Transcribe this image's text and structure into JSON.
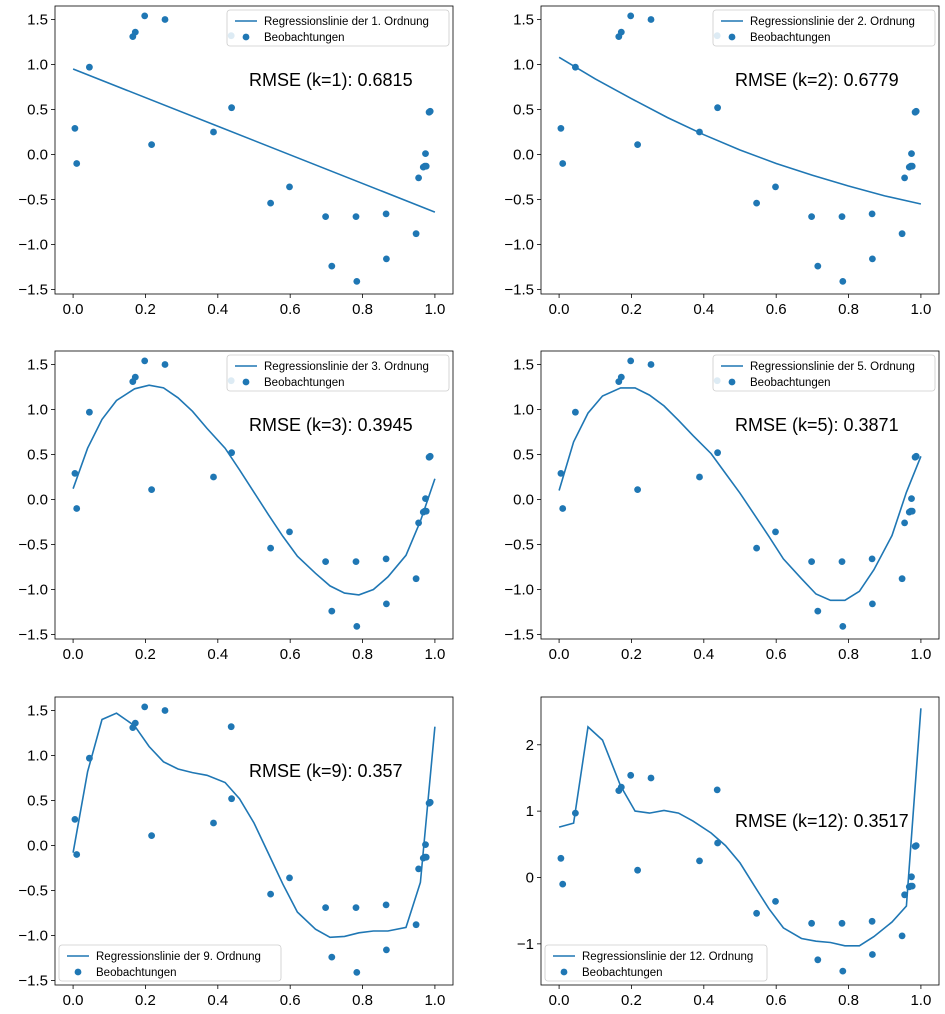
{
  "chart_data": [
    {
      "type": "line",
      "line_label": "Regressionslinie der 1. Ordnung",
      "points_label": "Beobachtungen",
      "rmse_label": "RMSE (k=1): 0.6815",
      "legend_position": "upper right",
      "xlim": [
        -0.05,
        1.05
      ],
      "ylim": [
        -1.55,
        1.65
      ],
      "xticks": [
        "0.0",
        "0.2",
        "0.4",
        "0.6",
        "0.8",
        "1.0"
      ],
      "yticks": [
        "-1.5",
        "-1.0",
        "-0.5",
        "0.0",
        "0.5",
        "1.0",
        "1.5"
      ],
      "ytick_values": [
        -1.5,
        -1.0,
        -0.5,
        0.0,
        0.5,
        1.0,
        1.5
      ],
      "line": {
        "x": [
          0.0,
          1.0
        ],
        "y": [
          0.95,
          -0.64
        ]
      }
    },
    {
      "type": "line",
      "line_label": "Regressionslinie der 2. Ordnung",
      "points_label": "Beobachtungen",
      "rmse_label": "RMSE (k=2): 0.6779",
      "legend_position": "upper right",
      "xlim": [
        -0.05,
        1.05
      ],
      "ylim": [
        -1.55,
        1.65
      ],
      "xticks": [
        "0.0",
        "0.2",
        "0.4",
        "0.6",
        "0.8",
        "1.0"
      ],
      "yticks": [
        "-1.5",
        "-1.0",
        "-0.5",
        "0.0",
        "0.5",
        "1.0",
        "1.5"
      ],
      "ytick_values": [
        -1.5,
        -1.0,
        -0.5,
        0.0,
        0.5,
        1.0,
        1.5
      ],
      "line": {
        "x": [
          0.0,
          0.1,
          0.2,
          0.3,
          0.4,
          0.5,
          0.6,
          0.7,
          0.8,
          0.9,
          1.0
        ],
        "y": [
          1.08,
          0.84,
          0.62,
          0.41,
          0.22,
          0.05,
          -0.1,
          -0.23,
          -0.35,
          -0.46,
          -0.55
        ]
      }
    },
    {
      "type": "line",
      "line_label": "Regressionslinie der 3. Ordnung",
      "points_label": "Beobachtungen",
      "rmse_label": "RMSE (k=3): 0.3945",
      "legend_position": "upper right",
      "xlim": [
        -0.05,
        1.05
      ],
      "ylim": [
        -1.55,
        1.65
      ],
      "xticks": [
        "0.0",
        "0.2",
        "0.4",
        "0.6",
        "0.8",
        "1.0"
      ],
      "yticks": [
        "-1.5",
        "-1.0",
        "-0.5",
        "0.0",
        "0.5",
        "1.0",
        "1.5"
      ],
      "ytick_values": [
        -1.5,
        -1.0,
        -0.5,
        0.0,
        0.5,
        1.0,
        1.5
      ],
      "line": {
        "x": [
          0.0,
          0.04,
          0.08,
          0.12,
          0.17,
          0.21,
          0.25,
          0.29,
          0.33,
          0.37,
          0.42,
          0.46,
          0.5,
          0.54,
          0.58,
          0.62,
          0.67,
          0.71,
          0.75,
          0.79,
          0.83,
          0.87,
          0.92,
          0.96,
          1.0
        ],
        "y": [
          0.12,
          0.57,
          0.89,
          1.1,
          1.23,
          1.27,
          1.24,
          1.13,
          0.98,
          0.79,
          0.57,
          0.33,
          0.08,
          -0.17,
          -0.41,
          -0.63,
          -0.82,
          -0.96,
          -1.04,
          -1.06,
          -1.0,
          -0.86,
          -0.62,
          -0.24,
          0.23
        ]
      }
    },
    {
      "type": "line",
      "line_label": "Regressionslinie der 5. Ordnung",
      "points_label": "Beobachtungen",
      "rmse_label": "RMSE (k=5): 0.3871",
      "legend_position": "upper right",
      "xlim": [
        -0.05,
        1.05
      ],
      "ylim": [
        -1.55,
        1.65
      ],
      "xticks": [
        "0.0",
        "0.2",
        "0.4",
        "0.6",
        "0.8",
        "1.0"
      ],
      "yticks": [
        "-1.5",
        "-1.0",
        "-0.5",
        "0.0",
        "0.5",
        "1.0",
        "1.5"
      ],
      "ytick_values": [
        -1.5,
        -1.0,
        -0.5,
        0.0,
        0.5,
        1.0,
        1.5
      ],
      "line": {
        "x": [
          0.0,
          0.04,
          0.08,
          0.12,
          0.17,
          0.21,
          0.25,
          0.29,
          0.33,
          0.37,
          0.42,
          0.46,
          0.5,
          0.54,
          0.58,
          0.62,
          0.67,
          0.71,
          0.75,
          0.79,
          0.83,
          0.87,
          0.92,
          0.96,
          1.0
        ],
        "y": [
          0.1,
          0.64,
          0.96,
          1.15,
          1.24,
          1.24,
          1.16,
          1.04,
          0.88,
          0.71,
          0.51,
          0.29,
          0.07,
          -0.17,
          -0.41,
          -0.66,
          -0.88,
          -1.05,
          -1.12,
          -1.12,
          -1.02,
          -0.78,
          -0.4,
          0.08,
          0.48
        ]
      }
    },
    {
      "type": "line",
      "line_label": "Regressionslinie der 9. Ordnung",
      "points_label": "Beobachtungen",
      "rmse_label": "RMSE (k=9): 0.357",
      "legend_position": "lower left",
      "xlim": [
        -0.05,
        1.05
      ],
      "ylim": [
        -1.55,
        1.65
      ],
      "xticks": [
        "0.0",
        "0.2",
        "0.4",
        "0.6",
        "0.8",
        "1.0"
      ],
      "yticks": [
        "-1.5",
        "-1.0",
        "-0.5",
        "0.0",
        "0.5",
        "1.0",
        "1.5"
      ],
      "ytick_values": [
        -1.5,
        -1.0,
        -0.5,
        0.0,
        0.5,
        1.0,
        1.5
      ],
      "line": {
        "x": [
          0.0,
          0.04,
          0.08,
          0.12,
          0.17,
          0.21,
          0.25,
          0.29,
          0.33,
          0.37,
          0.42,
          0.46,
          0.5,
          0.54,
          0.58,
          0.62,
          0.67,
          0.71,
          0.75,
          0.79,
          0.83,
          0.87,
          0.92,
          0.96,
          1.0
        ],
        "y": [
          -0.08,
          0.82,
          1.4,
          1.47,
          1.33,
          1.1,
          0.93,
          0.85,
          0.81,
          0.78,
          0.7,
          0.52,
          0.25,
          -0.09,
          -0.43,
          -0.74,
          -0.93,
          -1.02,
          -1.01,
          -0.97,
          -0.95,
          -0.95,
          -0.91,
          -0.41,
          1.32
        ]
      }
    },
    {
      "type": "line",
      "line_label": "Regressionslinie der 12. Ordnung",
      "points_label": "Beobachtungen",
      "rmse_label": "RMSE (k=12): 0.3517",
      "legend_position": "lower left",
      "xlim": [
        -0.05,
        1.05
      ],
      "ylim": [
        -1.62,
        2.72
      ],
      "xticks": [
        "0.0",
        "0.2",
        "0.4",
        "0.6",
        "0.8",
        "1.0"
      ],
      "yticks": [
        "-1",
        "0",
        "1",
        "2"
      ],
      "ytick_values": [
        -1,
        0,
        1,
        2
      ],
      "line": {
        "x": [
          0.0,
          0.04,
          0.08,
          0.12,
          0.17,
          0.21,
          0.25,
          0.29,
          0.33,
          0.37,
          0.42,
          0.46,
          0.5,
          0.54,
          0.58,
          0.62,
          0.67,
          0.71,
          0.75,
          0.79,
          0.83,
          0.87,
          0.92,
          0.96,
          1.0
        ],
        "y": [
          0.76,
          0.82,
          2.27,
          2.07,
          1.38,
          1.0,
          0.97,
          1.01,
          0.97,
          0.85,
          0.67,
          0.48,
          0.22,
          -0.13,
          -0.47,
          -0.76,
          -0.92,
          -0.96,
          -0.98,
          -1.03,
          -1.03,
          -0.89,
          -0.67,
          -0.43,
          2.55
        ]
      }
    }
  ],
  "observations": {
    "x": [
      0.005,
      0.01,
      0.045,
      0.165,
      0.172,
      0.198,
      0.217,
      0.254,
      0.388,
      0.437,
      0.438,
      0.546,
      0.598,
      0.698,
      0.715,
      0.784,
      0.782,
      0.865,
      0.866,
      0.948,
      0.955,
      0.968,
      0.972,
      0.974,
      0.976,
      0.984,
      0.987
    ],
    "y": [
      0.29,
      -0.1,
      0.97,
      1.31,
      1.36,
      1.54,
      0.11,
      1.5,
      0.25,
      1.32,
      0.52,
      -0.54,
      -0.36,
      -0.69,
      -1.24,
      -1.41,
      -0.69,
      -0.66,
      -1.16,
      -0.88,
      -0.26,
      -0.14,
      -0.13,
      0.01,
      -0.13,
      0.47,
      0.48
    ]
  },
  "colors": {
    "line": "#1f77b4",
    "points": "#1f77b4"
  }
}
